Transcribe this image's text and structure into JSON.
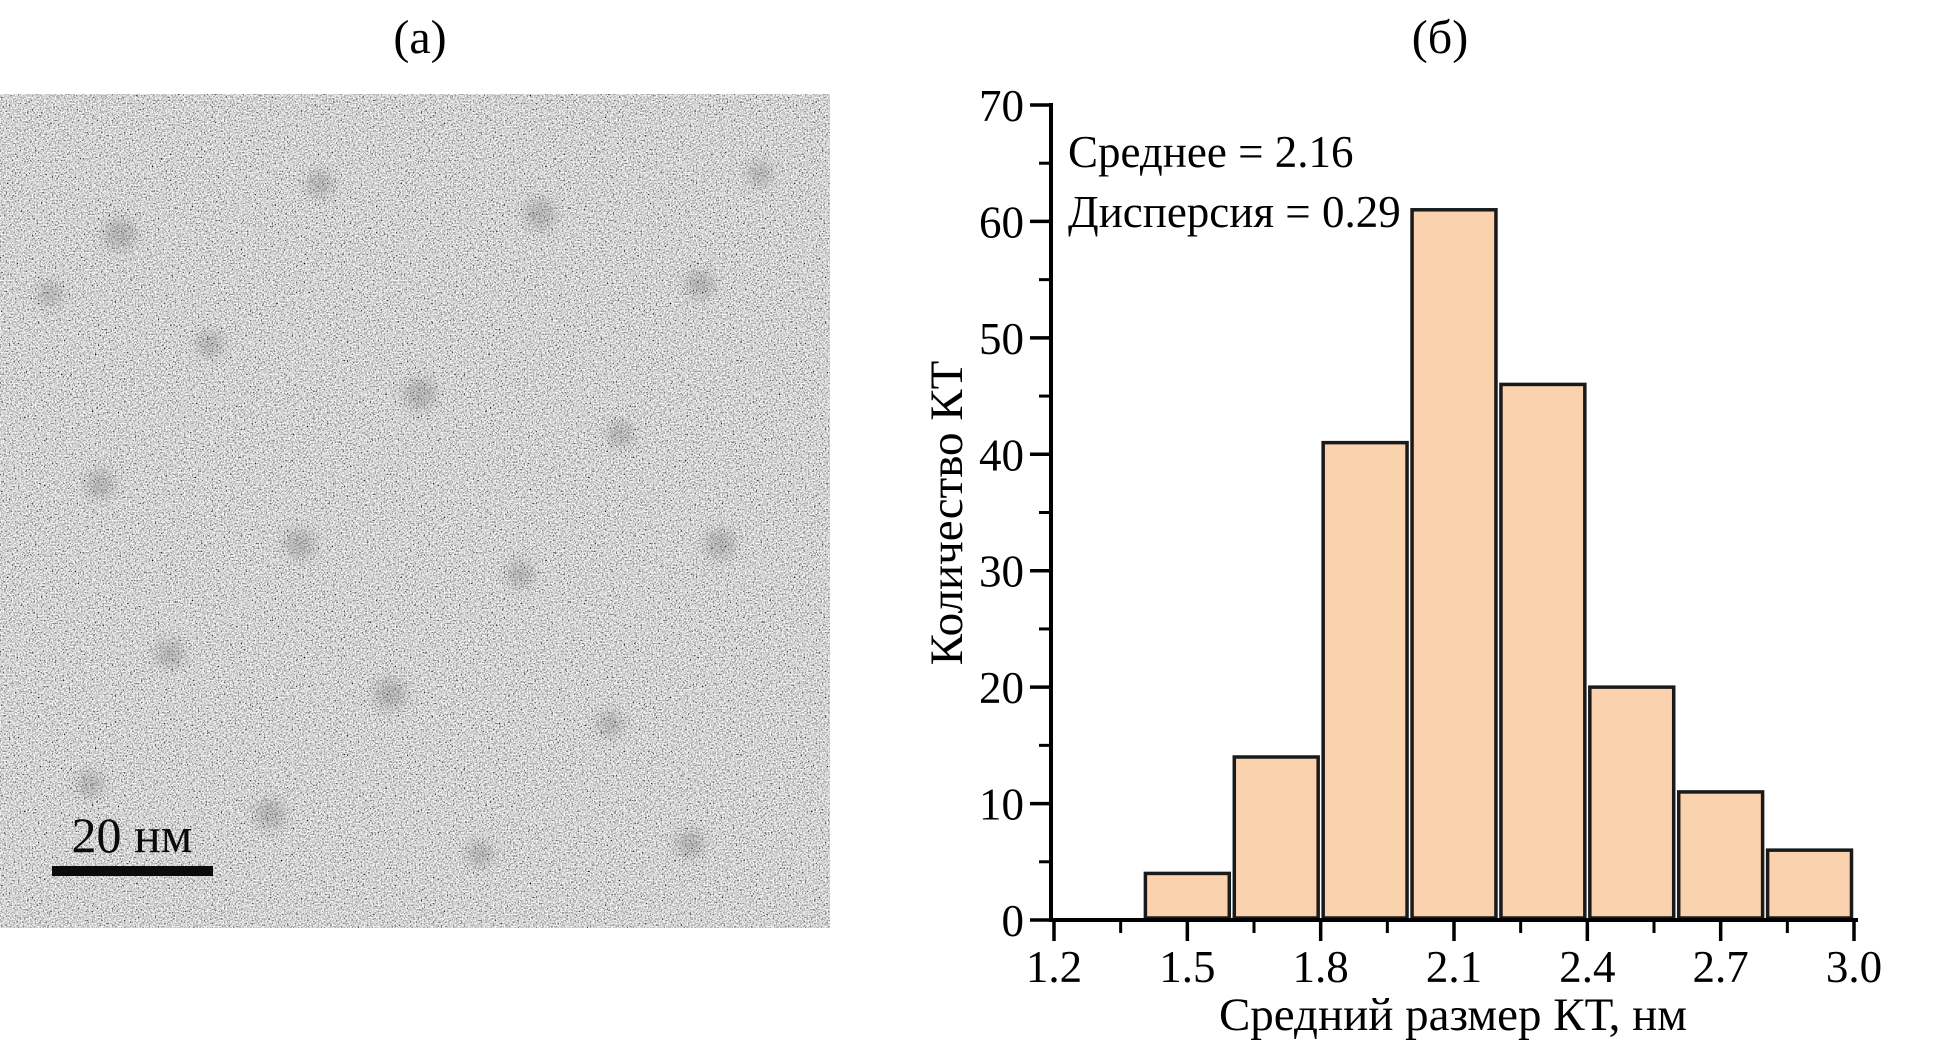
{
  "figure": {
    "panels": [
      {
        "label": "(а)"
      },
      {
        "label": "(б)"
      }
    ],
    "tem": {
      "scale_bar_label": "20 нм"
    }
  },
  "chart_data": {
    "type": "bar",
    "panel": "(б)",
    "xlabel": "Средний размер КТ, нм",
    "ylabel": "Количество КТ",
    "annotations": [
      "Среднее = 2.16",
      "Дисперсия = 0.29"
    ],
    "bins": [
      {
        "x0": 1.4,
        "x1": 1.6,
        "count": 4
      },
      {
        "x0": 1.6,
        "x1": 1.8,
        "count": 14
      },
      {
        "x0": 1.8,
        "x1": 2.0,
        "count": 41
      },
      {
        "x0": 2.0,
        "x1": 2.2,
        "count": 61
      },
      {
        "x0": 2.2,
        "x1": 2.4,
        "count": 46
      },
      {
        "x0": 2.4,
        "x1": 2.6,
        "count": 20
      },
      {
        "x0": 2.6,
        "x1": 2.8,
        "count": 11
      },
      {
        "x0": 2.8,
        "x1": 3.0,
        "count": 6
      }
    ],
    "x_ticks_major": [
      1.2,
      1.5,
      1.8,
      2.1,
      2.4,
      2.7,
      3.0
    ],
    "x_tick_labels": [
      "1.2",
      "1.5",
      "1.8",
      "2.1",
      "2.4",
      "2.7",
      "3.0"
    ],
    "x_ticks_minor": [
      1.35,
      1.65,
      1.95,
      2.25,
      2.55,
      2.85
    ],
    "y_ticks_major": [
      0,
      10,
      20,
      30,
      40,
      50,
      60,
      70
    ],
    "y_tick_labels": [
      "0",
      "10",
      "20",
      "30",
      "40",
      "50",
      "60",
      "70"
    ],
    "y_ticks_minor": [
      5,
      15,
      25,
      35,
      45,
      55,
      65
    ],
    "xlim": [
      1.2,
      3.0
    ],
    "ylim": [
      0,
      70
    ],
    "grid": false,
    "legend_position": "none",
    "bar_fill": "#FBD2AE",
    "bar_stroke": "#1A1A1A",
    "axis_color": "#000000"
  }
}
